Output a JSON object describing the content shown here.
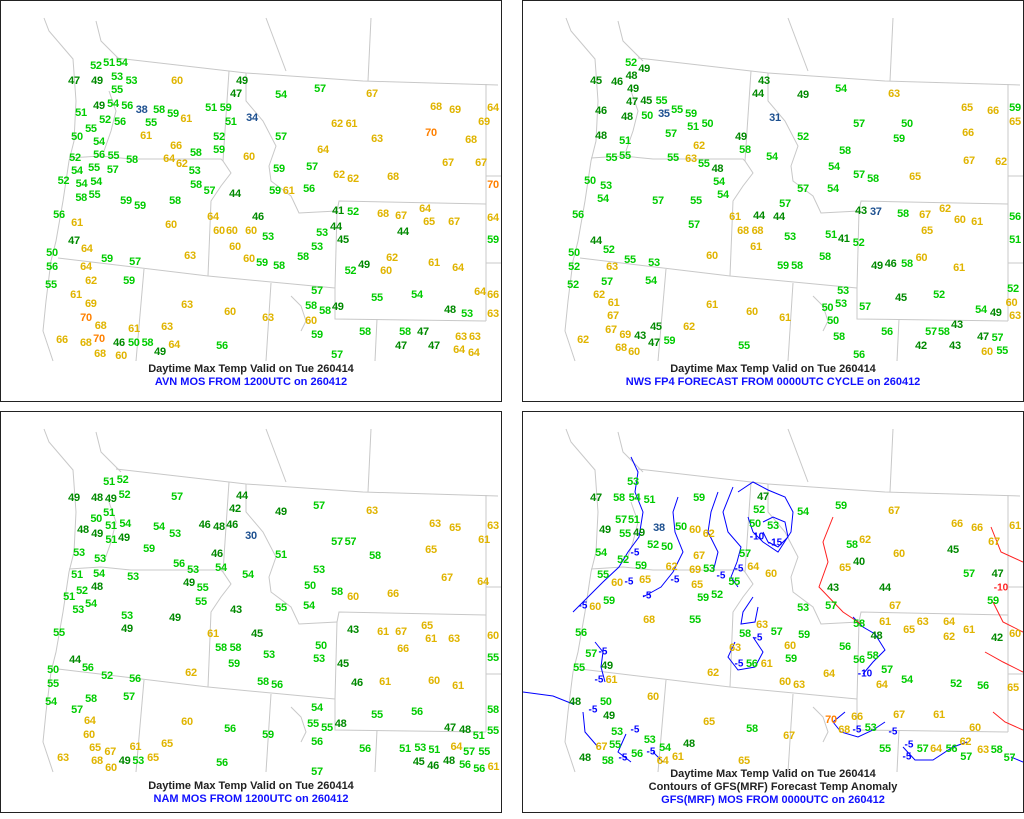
{
  "colors": {
    "below40": "#1c4f8f",
    "t40s": "#008a00",
    "t50s": "#00cc00",
    "t60s": "#e0b400",
    "t70s": "#ff8000",
    "border": "#c8c8c8",
    "contour_neg": "#0000ff",
    "contour_pos": "#ff2020"
  },
  "panels": [
    {
      "caption": "Daytime Max Temp Valid on Tue 260414",
      "source": "AVN MOS FROM 1200UTC on 260412",
      "stations": [
        47,
        49,
        51,
        54,
        52,
        53,
        53,
        55,
        60,
        49,
        47,
        49,
        54,
        56,
        51,
        52,
        56,
        38,
        58,
        59,
        61,
        55,
        55,
        61,
        50,
        54,
        66,
        56,
        55,
        52,
        55,
        57,
        58,
        64,
        62,
        58,
        53,
        58,
        57,
        54,
        54,
        54,
        52,
        55,
        58,
        59,
        59,
        58,
        56,
        61,
        60,
        64,
        60,
        60,
        46,
        60,
        63,
        47,
        64,
        50,
        56,
        59,
        57,
        64,
        62,
        59,
        55,
        61,
        69,
        70,
        68,
        70,
        66,
        68,
        46,
        50,
        58,
        61,
        68,
        60,
        49,
        63,
        60,
        63,
        64,
        56,
        63,
        57,
        58,
        58,
        60,
        49,
        59,
        57,
        58,
        55,
        54,
        58,
        47,
        47,
        47,
        48,
        53,
        63,
        63,
        64,
        64,
        63,
        66,
        64,
        53,
        59,
        58,
        60,
        58,
        53,
        53,
        45,
        44,
        49,
        52,
        62,
        60,
        61,
        64,
        59,
        64,
        70,
        67,
        67,
        68,
        69,
        64,
        69,
        68,
        70,
        68,
        62,
        62,
        57,
        59,
        56,
        59,
        64,
        63,
        62,
        61,
        67,
        57,
        54,
        57,
        34,
        52,
        59,
        60,
        44,
        60,
        51,
        59,
        51,
        61,
        68,
        67,
        64,
        65,
        67,
        44,
        41,
        52
      ]
    },
    {
      "caption": "Daytime Max Temp Valid on Tue 260414",
      "source": "NWS FP4 FORECAST FROM 0000UTC CYCLE on 260412",
      "stations": [
        45,
        52,
        49,
        48,
        49,
        46,
        47,
        45,
        55,
        48,
        50,
        35,
        46,
        55,
        59,
        51,
        50,
        57,
        48,
        51,
        62,
        55,
        55,
        55,
        63,
        55,
        48,
        54,
        54,
        50,
        53,
        54,
        55,
        57,
        56,
        57,
        61,
        68,
        68,
        44,
        61,
        60,
        44,
        52,
        50,
        52,
        55,
        53,
        63,
        57,
        54,
        52,
        62,
        61,
        67,
        67,
        69,
        62,
        68,
        60,
        43,
        47,
        59,
        45,
        61,
        62,
        60,
        55,
        61,
        43,
        44,
        49,
        54,
        63,
        65,
        66,
        59,
        65,
        66,
        50,
        57,
        31,
        49,
        58,
        54,
        52,
        58,
        59,
        54,
        57,
        58,
        65,
        67,
        62,
        57,
        54,
        44,
        57,
        53,
        51,
        41,
        52,
        43,
        37,
        58,
        67,
        62,
        60,
        61,
        56,
        51,
        65,
        49,
        46,
        58,
        60,
        61,
        59,
        58,
        58,
        53,
        53,
        50,
        50,
        57,
        45,
        52,
        54,
        49,
        52,
        60,
        63,
        58,
        56,
        57,
        58,
        43,
        43,
        42,
        47,
        57,
        60,
        55,
        56,
        58,
        54
      ]
    },
    {
      "caption": "Daytime Max Temp Valid on Tue 260414",
      "source": "NAM MOS FROM 1200UTC on 260412",
      "stations": [
        49,
        48,
        51,
        52,
        52,
        49,
        51,
        57,
        44,
        42,
        49,
        57,
        63,
        63,
        65,
        63,
        61,
        50,
        51,
        54,
        48,
        49,
        49,
        51,
        54,
        53,
        48,
        46,
        46,
        30,
        59,
        51,
        57,
        57,
        58,
        65,
        53,
        53,
        46,
        54,
        54,
        53,
        50,
        58,
        60,
        66,
        67,
        64,
        51,
        54,
        48,
        52,
        53,
        56,
        53,
        49,
        55,
        55,
        54,
        53,
        51,
        55,
        53,
        49,
        49,
        43,
        55,
        54,
        61,
        58,
        58,
        45,
        59,
        62,
        53,
        53,
        50,
        45,
        43,
        61,
        67,
        65,
        61,
        63,
        66,
        60,
        55,
        46,
        61,
        60,
        61,
        58,
        56,
        50,
        55,
        52,
        56,
        44,
        56,
        58,
        57,
        54,
        57,
        64,
        60,
        65,
        67,
        63,
        68,
        60,
        49,
        53,
        65,
        61,
        65,
        60,
        56,
        56,
        59,
        54,
        55,
        55,
        56,
        48,
        57,
        56,
        55,
        56,
        51,
        53,
        45,
        51,
        46,
        47,
        48,
        48,
        58,
        55,
        57,
        55,
        56,
        56,
        61,
        64,
        51
      ]
    },
    {
      "caption": "Daytime Max Temp Valid on Tue 260414",
      "contour_caption": "Contours of GFS(MRF) Forecast Temp Anomaly",
      "source": "GFS(MRF) MOS FROM 0000UTC on 260412",
      "stations": [
        47,
        58,
        53,
        54,
        51,
        59,
        47,
        52,
        54,
        59,
        67,
        66,
        66,
        61,
        67,
        57,
        51,
        49,
        55,
        49,
        38,
        50,
        60,
        62,
        50,
        53,
        50,
        52,
        54,
        52,
        59,
        55,
        60,
        65,
        62,
        69,
        67,
        65,
        53,
        55,
        52,
        59,
        57,
        64,
        59,
        60,
        68,
        55,
        58,
        60,
        65,
        62,
        58,
        60,
        45,
        57,
        47,
        59,
        43,
        40,
        57,
        53,
        44,
        61,
        67,
        65,
        63,
        64,
        62,
        61,
        42,
        60,
        63,
        57,
        59,
        60,
        56,
        61,
        63,
        59,
        58,
        48,
        56,
        56,
        58,
        57,
        54,
        52,
        56,
        65,
        64,
        60,
        63,
        64,
        62,
        56,
        55,
        61,
        57,
        49,
        48,
        50,
        60,
        48,
        53,
        55,
        56,
        58,
        49,
        67,
        64,
        54,
        53,
        61,
        48,
        65,
        58,
        65,
        67,
        70,
        68,
        66,
        53,
        55,
        67,
        61,
        57,
        64,
        56,
        62,
        57,
        60,
        63,
        58,
        57
      ],
      "anomaly_labels": [
        "-10",
        "-15",
        "-5",
        "-5",
        "-5",
        "-5",
        "-5",
        "-5",
        "-5",
        "-5",
        "-5",
        "-5",
        "-5",
        "-5",
        "-5",
        "-5",
        "-5",
        "-5",
        "-10",
        "-5",
        "-5",
        "-10",
        "-5"
      ]
    }
  ]
}
